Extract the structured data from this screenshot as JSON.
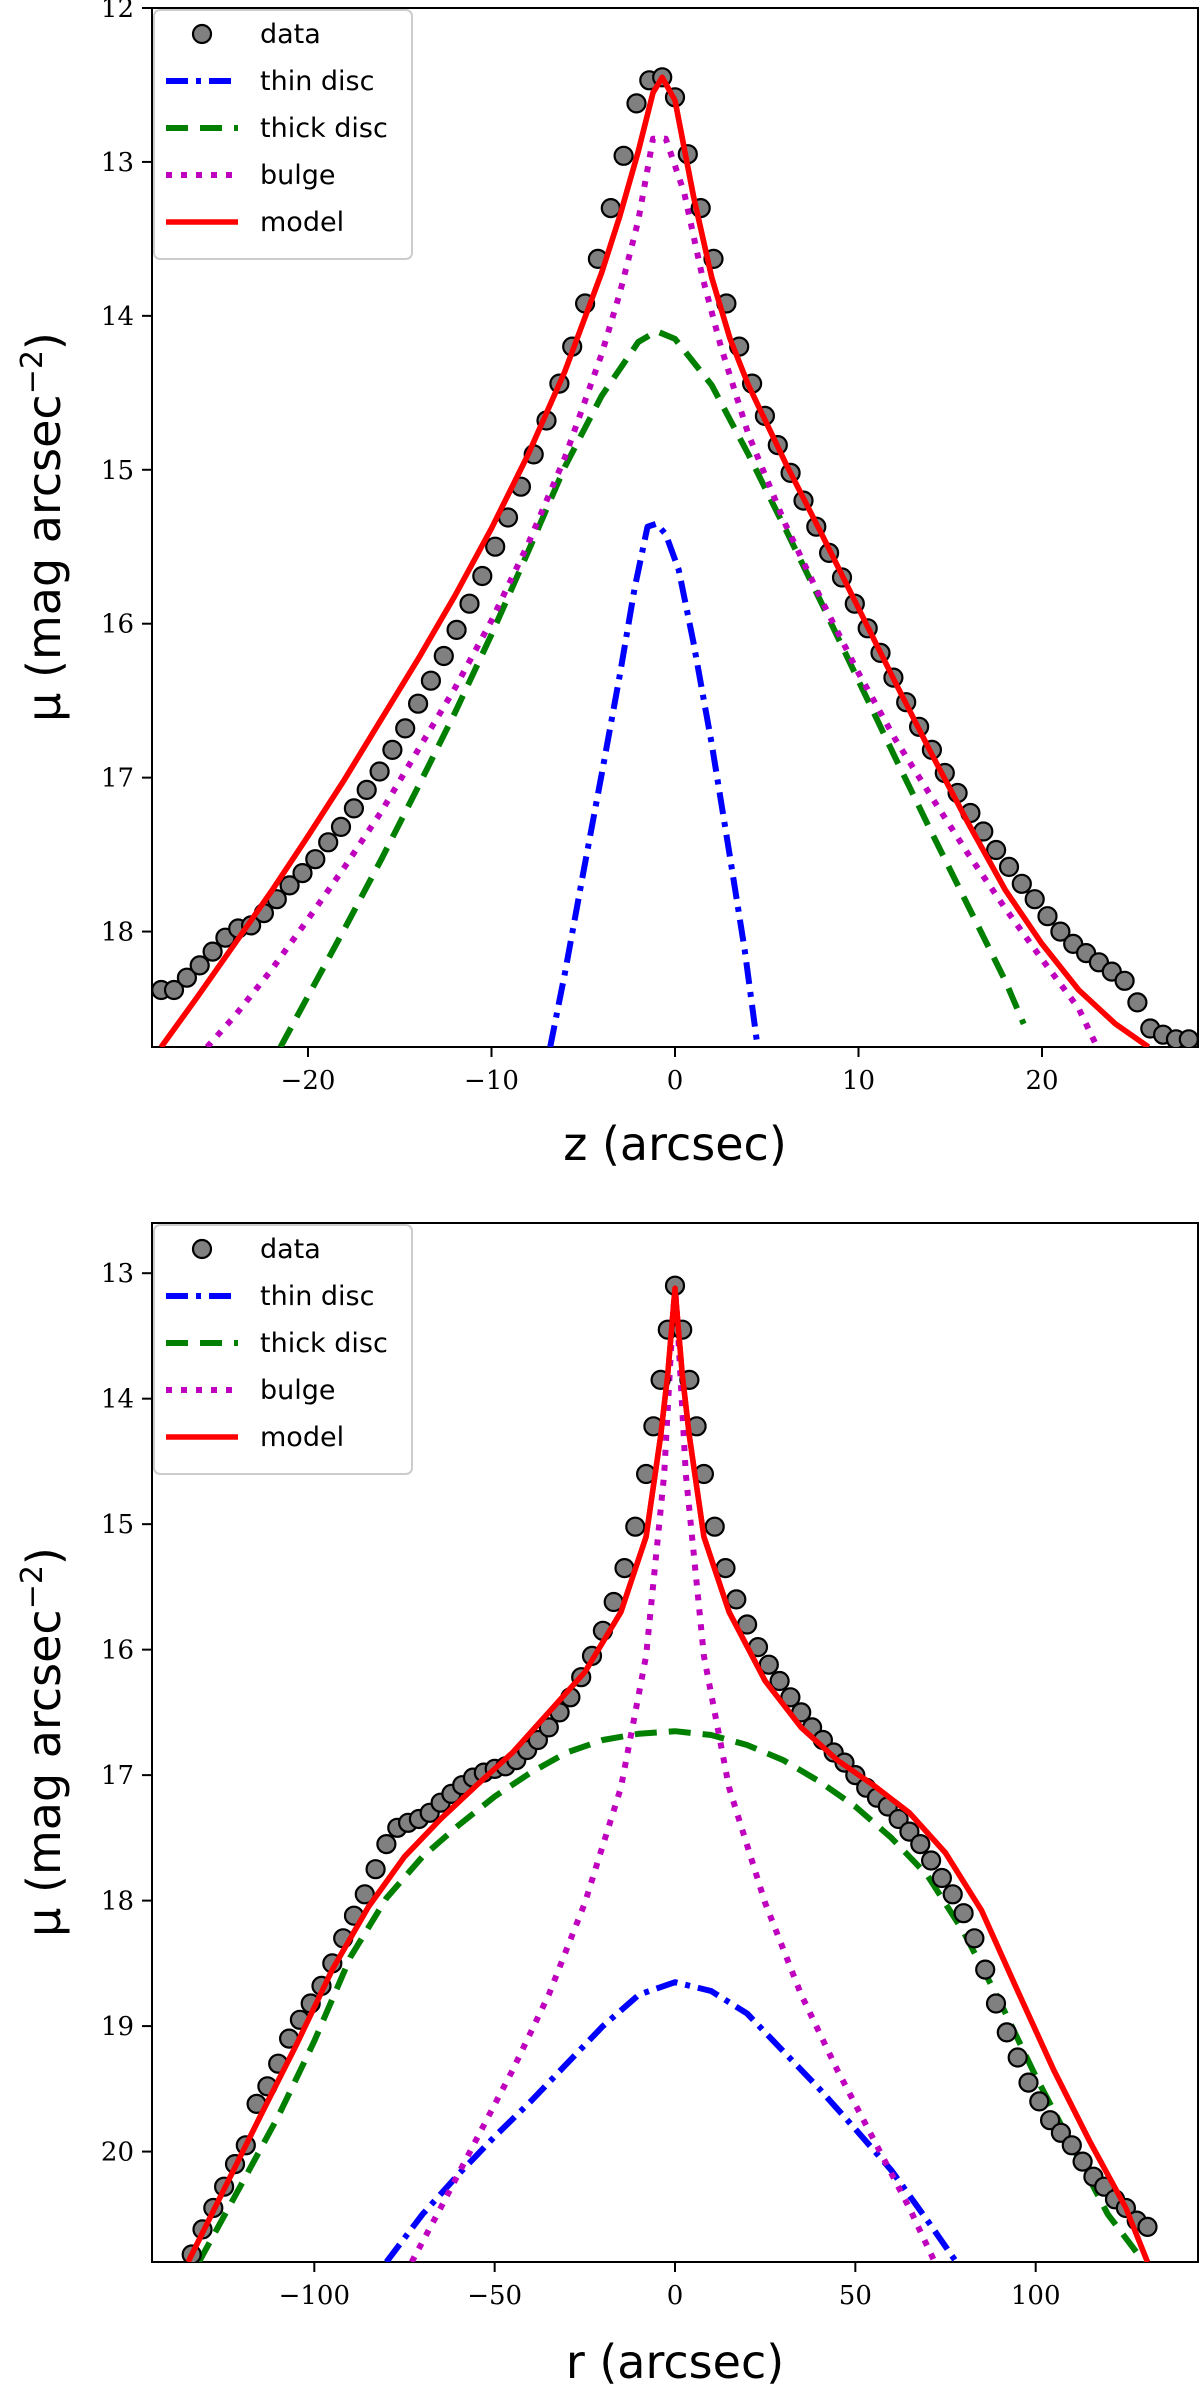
{
  "chart_data": [
    {
      "type": "line",
      "panel": "top",
      "xlabel": "z (arcsec)",
      "ylabel": "μ (mag arcsec",
      "ylabel_exp": "−2",
      "ylabel_close": ")",
      "xlim": [
        -28.5,
        28.5
      ],
      "ylim": [
        18.75,
        12.0
      ],
      "y_inverted": true,
      "xticks": [
        -20,
        -10,
        0,
        10,
        20
      ],
      "xtick_labels": [
        "−20",
        "−10",
        "0",
        "10",
        "20"
      ],
      "yticks": [
        12,
        13,
        14,
        15,
        16,
        17,
        18
      ],
      "ytick_labels": [
        "12",
        "13",
        "14",
        "15",
        "16",
        "17",
        "18"
      ],
      "legend": {
        "placement": "top-left",
        "entries": [
          {
            "key": "data",
            "label": "data"
          },
          {
            "key": "thin",
            "label": "thin disc"
          },
          {
            "key": "thick",
            "label": "thick disc"
          },
          {
            "key": "bulge",
            "label": "bulge"
          },
          {
            "key": "model",
            "label": "model"
          }
        ]
      },
      "data_points": {
        "x": [
          -28,
          -27.3,
          -26.6,
          -25.9,
          -25.2,
          -24.5,
          -23.8,
          -23.1,
          -22.4,
          -21.7,
          -21,
          -20.3,
          -19.6,
          -18.9,
          -18.2,
          -17.5,
          -16.8,
          -16.1,
          -15.4,
          -14.7,
          -14,
          -13.3,
          -12.6,
          -11.9,
          -11.2,
          -10.5,
          -9.8,
          -9.1,
          -8.4,
          -7.7,
          -7,
          -6.3,
          -5.6,
          -4.9,
          -4.2,
          -3.5,
          -2.8,
          -2.1,
          -1.4,
          -0.7,
          0,
          0.7,
          1.4,
          2.1,
          2.8,
          3.5,
          4.2,
          4.9,
          5.6,
          6.3,
          7,
          7.7,
          8.4,
          9.1,
          9.8,
          10.5,
          11.2,
          11.9,
          12.6,
          13.3,
          14,
          14.7,
          15.4,
          16.1,
          16.8,
          17.5,
          18.2,
          18.9,
          19.6,
          20.3,
          21,
          21.7,
          22.4,
          23.1,
          23.8,
          24.5,
          25.2,
          25.9,
          26.6,
          27.3,
          28
        ],
        "y": [
          18.38,
          18.38,
          18.3,
          18.22,
          18.13,
          18.04,
          17.98,
          17.96,
          17.88,
          17.79,
          17.7,
          17.62,
          17.53,
          17.42,
          17.32,
          17.2,
          17.08,
          16.96,
          16.82,
          16.68,
          16.52,
          16.37,
          16.21,
          16.04,
          15.87,
          15.69,
          15.5,
          15.31,
          15.11,
          14.9,
          14.68,
          14.44,
          14.2,
          13.92,
          13.63,
          13.3,
          12.96,
          12.62,
          12.47,
          12.45,
          12.58,
          12.95,
          13.3,
          13.63,
          13.92,
          14.2,
          14.44,
          14.65,
          14.84,
          15.02,
          15.2,
          15.37,
          15.54,
          15.7,
          15.87,
          16.03,
          16.19,
          16.35,
          16.51,
          16.67,
          16.82,
          16.97,
          17.1,
          17.23,
          17.35,
          17.47,
          17.58,
          17.69,
          17.79,
          17.9,
          18.0,
          18.08,
          18.14,
          18.2,
          18.26,
          18.32,
          18.46,
          18.63,
          18.67,
          18.7,
          18.7
        ]
      },
      "series": [
        {
          "name": "thin disc",
          "key": "thin",
          "x": [
            -6.8,
            -6,
            -5,
            -4,
            -3,
            -2.2,
            -1.5,
            -1,
            -0.5,
            0.2,
            1,
            2,
            3,
            3.8,
            4.5
          ],
          "y": [
            18.75,
            18.27,
            17.62,
            16.98,
            16.33,
            15.77,
            15.37,
            15.35,
            15.42,
            15.65,
            16.12,
            16.78,
            17.52,
            18.12,
            18.75
          ]
        },
        {
          "name": "thick disc",
          "key": "thick",
          "x": [
            -21.5,
            -20,
            -18,
            -16,
            -14,
            -12,
            -10,
            -8,
            -6,
            -4,
            -2,
            -1,
            0,
            2,
            4,
            6,
            8,
            10,
            12,
            14,
            16,
            18,
            19
          ],
          "y": [
            18.75,
            18.42,
            17.98,
            17.53,
            17.06,
            16.58,
            16.07,
            15.53,
            14.98,
            14.52,
            14.17,
            14.1,
            14.15,
            14.45,
            14.9,
            15.38,
            15.87,
            16.37,
            16.87,
            17.36,
            17.84,
            18.32,
            18.6
          ]
        },
        {
          "name": "bulge",
          "key": "bulge",
          "x": [
            -25.5,
            -24,
            -22,
            -20,
            -18,
            -16,
            -14,
            -12,
            -10,
            -8,
            -6,
            -4,
            -3,
            -2,
            -1.2,
            -0.5,
            0.5,
            1.5,
            2.5,
            4,
            6,
            8,
            10,
            12,
            14,
            16,
            18,
            20,
            22,
            23
          ],
          "y": [
            18.75,
            18.55,
            18.25,
            17.92,
            17.58,
            17.22,
            16.82,
            16.42,
            15.98,
            15.48,
            14.92,
            14.25,
            13.85,
            13.38,
            12.85,
            12.85,
            13.2,
            13.75,
            14.2,
            14.77,
            15.35,
            15.85,
            16.32,
            16.75,
            17.13,
            17.5,
            17.85,
            18.18,
            18.5,
            18.75
          ]
        },
        {
          "name": "model",
          "key": "model",
          "x": [
            -28,
            -26,
            -24,
            -22,
            -20,
            -18,
            -16,
            -14,
            -12,
            -10,
            -8,
            -6,
            -4,
            -3,
            -2,
            -1.2,
            -0.7,
            0,
            1,
            2,
            3,
            4,
            6,
            8,
            10,
            12,
            14,
            16,
            18,
            20,
            22,
            24,
            25.8
          ],
          "y": [
            18.75,
            18.42,
            18.08,
            17.74,
            17.38,
            17.01,
            16.62,
            16.23,
            15.82,
            15.38,
            14.9,
            14.36,
            13.72,
            13.35,
            12.93,
            12.55,
            12.45,
            12.6,
            13.22,
            13.75,
            14.15,
            14.45,
            14.95,
            15.42,
            15.9,
            16.38,
            16.85,
            17.3,
            17.73,
            18.08,
            18.38,
            18.6,
            18.75
          ]
        }
      ]
    },
    {
      "type": "line",
      "panel": "bottom",
      "xlabel": "r (arcsec)",
      "ylabel": "μ (mag arcsec",
      "ylabel_exp": "−2",
      "ylabel_close": ")",
      "xlim": [
        -145,
        145
      ],
      "ylim": [
        20.88,
        12.6
      ],
      "y_inverted": true,
      "xticks": [
        -100,
        -50,
        0,
        50,
        100
      ],
      "xtick_labels": [
        "−100",
        "−50",
        "0",
        "50",
        "100"
      ],
      "yticks": [
        13,
        14,
        15,
        16,
        17,
        18,
        19,
        20
      ],
      "ytick_labels": [
        "13",
        "14",
        "15",
        "16",
        "17",
        "18",
        "19",
        "20"
      ],
      "legend": {
        "placement": "top-left",
        "entries": [
          {
            "key": "data",
            "label": "data"
          },
          {
            "key": "thin",
            "label": "thin disc"
          },
          {
            "key": "thick",
            "label": "thick disc"
          },
          {
            "key": "bulge",
            "label": "bulge"
          },
          {
            "key": "model",
            "label": "model"
          }
        ]
      },
      "data_points": {
        "x": [
          -134,
          -131,
          -128,
          -125,
          -122,
          -119,
          -116,
          -113,
          -110,
          -107,
          -104,
          -101,
          -98,
          -95,
          -92,
          -89,
          -86,
          -83,
          -80,
          -77,
          -74,
          -71,
          -68,
          -65,
          -62,
          -59,
          -56,
          -53,
          -50,
          -47,
          -44,
          -41,
          -38,
          -35,
          -32,
          -29,
          -26,
          -23,
          -20,
          -17,
          -14,
          -11,
          -8,
          -6,
          -4,
          -2,
          0,
          2,
          4,
          6,
          8,
          11,
          14,
          17,
          20,
          23,
          26,
          29,
          32,
          35,
          38,
          41,
          44,
          47,
          50,
          53,
          56,
          59,
          62,
          65,
          68,
          71,
          74,
          77,
          80,
          83,
          86,
          89,
          92,
          95,
          98,
          101,
          104,
          107,
          110,
          113,
          116,
          119,
          122,
          125,
          128,
          131
        ],
        "y": [
          20.82,
          20.62,
          20.45,
          20.28,
          20.1,
          19.95,
          19.62,
          19.48,
          19.3,
          19.1,
          18.95,
          18.82,
          18.68,
          18.5,
          18.3,
          18.12,
          17.95,
          17.75,
          17.55,
          17.42,
          17.38,
          17.35,
          17.3,
          17.22,
          17.15,
          17.08,
          17.02,
          16.98,
          16.95,
          16.93,
          16.88,
          16.8,
          16.72,
          16.62,
          16.5,
          16.38,
          16.22,
          16.05,
          15.85,
          15.62,
          15.35,
          15.02,
          14.6,
          14.22,
          13.85,
          13.45,
          13.1,
          13.45,
          13.85,
          14.22,
          14.6,
          15.02,
          15.35,
          15.6,
          15.8,
          15.98,
          16.12,
          16.25,
          16.38,
          16.5,
          16.62,
          16.72,
          16.82,
          16.9,
          17.0,
          17.1,
          17.18,
          17.25,
          17.35,
          17.45,
          17.55,
          17.68,
          17.82,
          17.95,
          18.1,
          18.3,
          18.55,
          18.82,
          19.05,
          19.25,
          19.45,
          19.6,
          19.75,
          19.85,
          19.95,
          20.08,
          20.2,
          20.28,
          20.38,
          20.45,
          20.55,
          20.6
        ]
      },
      "series": [
        {
          "name": "thin disc",
          "key": "thin",
          "x": [
            -80,
            -70,
            -60,
            -50,
            -40,
            -30,
            -20,
            -10,
            0,
            10,
            20,
            30,
            40,
            50,
            60,
            70,
            78
          ],
          "y": [
            20.88,
            20.5,
            20.18,
            19.88,
            19.6,
            19.3,
            19.0,
            18.75,
            18.65,
            18.72,
            18.9,
            19.2,
            19.5,
            19.82,
            20.15,
            20.55,
            20.88
          ]
        },
        {
          "name": "thick disc",
          "key": "thick",
          "x": [
            -132,
            -120,
            -110,
            -100,
            -90,
            -80,
            -70,
            -60,
            -50,
            -40,
            -30,
            -20,
            -10,
            0,
            10,
            20,
            30,
            40,
            50,
            60,
            70,
            80,
            90,
            100,
            110,
            120,
            130
          ],
          "y": [
            20.88,
            20.25,
            19.72,
            19.12,
            18.45,
            17.98,
            17.65,
            17.4,
            17.17,
            16.98,
            16.82,
            16.72,
            16.67,
            16.65,
            16.68,
            16.76,
            16.88,
            17.05,
            17.25,
            17.5,
            17.8,
            18.25,
            18.8,
            19.4,
            19.95,
            20.5,
            20.88
          ]
        },
        {
          "name": "bulge",
          "key": "bulge",
          "x": [
            -73,
            -65,
            -55,
            -45,
            -35,
            -25,
            -15,
            -8,
            -3,
            -1,
            0,
            1,
            3,
            8,
            15,
            25,
            35,
            45,
            55,
            65,
            72
          ],
          "y": [
            20.88,
            20.45,
            19.9,
            19.35,
            18.75,
            18.02,
            17.1,
            16.05,
            14.6,
            13.55,
            13.1,
            13.55,
            14.6,
            16.05,
            17.1,
            18.02,
            18.75,
            19.35,
            19.9,
            20.45,
            20.88
          ]
        },
        {
          "name": "model",
          "key": "model",
          "x": [
            -135,
            -125,
            -115,
            -105,
            -95,
            -85,
            -75,
            -65,
            -55,
            -45,
            -35,
            -25,
            -15,
            -8,
            -4,
            -2,
            0,
            2,
            4,
            8,
            15,
            25,
            35,
            45,
            55,
            65,
            75,
            85,
            95,
            105,
            115,
            125,
            131
          ],
          "y": [
            20.88,
            20.3,
            19.72,
            19.15,
            18.55,
            18.05,
            17.65,
            17.35,
            17.08,
            16.82,
            16.5,
            16.18,
            15.7,
            15.1,
            14.3,
            13.8,
            13.12,
            13.8,
            14.3,
            15.1,
            15.7,
            16.25,
            16.62,
            16.88,
            17.08,
            17.3,
            17.62,
            18.08,
            18.72,
            19.35,
            19.92,
            20.45,
            20.88
          ]
        }
      ]
    }
  ],
  "colors": {
    "data_fill": "#808080",
    "data_edge": "#000000",
    "thin": "#0000ff",
    "thick": "#007f00",
    "bulge": "#bf00bf",
    "model": "#ff0000"
  }
}
